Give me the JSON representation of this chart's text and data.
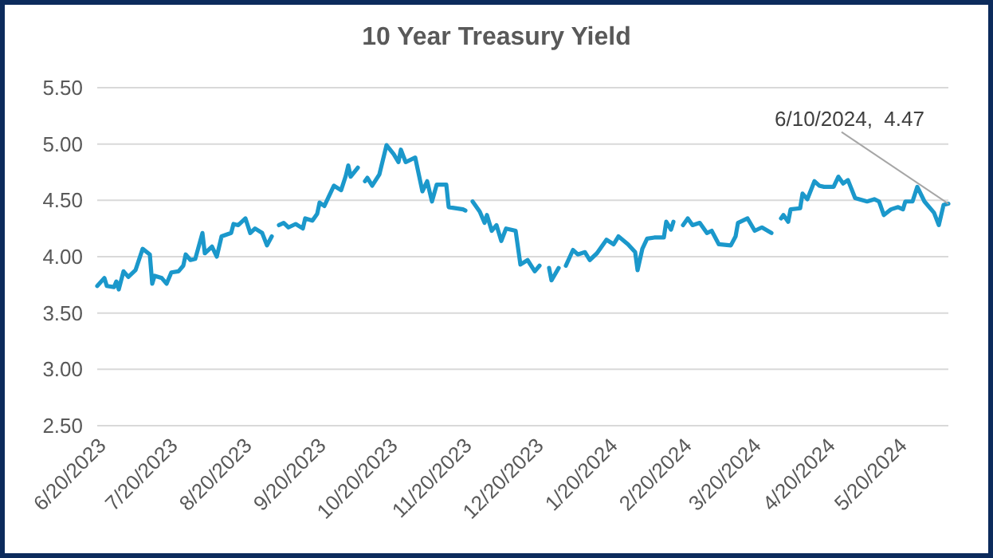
{
  "chart_data": {
    "type": "line",
    "title": "10 Year Treasury Yield",
    "xlim": [
      "2023-06-20",
      "2024-06-10"
    ],
    "xticks": [
      {
        "value": "2023-06-20",
        "label": "6/20/2023"
      },
      {
        "value": "2023-07-20",
        "label": "7/20/2023"
      },
      {
        "value": "2023-08-20",
        "label": "8/20/2023"
      },
      {
        "value": "2023-09-20",
        "label": "9/20/2023"
      },
      {
        "value": "2023-10-20",
        "label": "10/20/2023"
      },
      {
        "value": "2023-11-20",
        "label": "11/20/2023"
      },
      {
        "value": "2023-12-20",
        "label": "12/20/2023"
      },
      {
        "value": "2024-01-20",
        "label": "1/20/2024"
      },
      {
        "value": "2024-02-20",
        "label": "2/20/2024"
      },
      {
        "value": "2024-03-20",
        "label": "3/20/2024"
      },
      {
        "value": "2024-04-20",
        "label": "4/20/2024"
      },
      {
        "value": "2024-05-20",
        "label": "5/20/2024"
      }
    ],
    "ylim": [
      2.5,
      5.5
    ],
    "yticks": [
      {
        "value": 2.5,
        "label": "2.50"
      },
      {
        "value": 3,
        "label": "3.00"
      },
      {
        "value": 3.5,
        "label": "3.50"
      },
      {
        "value": 4,
        "label": "4.00"
      },
      {
        "value": 4.5,
        "label": "4.50"
      },
      {
        "value": 5,
        "label": "5.00"
      },
      {
        "value": 5.5,
        "label": "5.50"
      }
    ],
    "grid": "y",
    "marker": "none",
    "line_style": "solid",
    "annotations": [
      {
        "text": "6/10/2024,  4.47",
        "x": "2024-06-10",
        "y": 4.47
      }
    ],
    "series": [
      {
        "color": "#1b98cb",
        "x": [
          "2023-06-20",
          "2023-06-23",
          "2023-06-24",
          "2023-06-27",
          "2023-06-28",
          "2023-06-29",
          "2023-07-01",
          "2023-07-03",
          "2023-07-06",
          "2023-07-09",
          "2023-07-12",
          "2023-07-13",
          "2023-07-14",
          "2023-07-17",
          "2023-07-19",
          "2023-07-21",
          "2023-07-24",
          "2023-07-26",
          "2023-07-27",
          "2023-07-29",
          "2023-07-31",
          "2023-08-03",
          "2023-08-04",
          "2023-08-07",
          "2023-08-09",
          "2023-08-11",
          "2023-08-15",
          "2023-08-16",
          "2023-08-18",
          "2023-08-21",
          "2023-08-23",
          "2023-08-25",
          "2023-08-28",
          "2023-08-30",
          "2023-09-01",
          "2023-09-02",
          "2023-09-04",
          "2023-09-06",
          "2023-09-08",
          "2023-09-11",
          "2023-09-14",
          "2023-09-15",
          "2023-09-18",
          "2023-09-20",
          "2023-09-21",
          "2023-09-23",
          "2023-09-27",
          "2023-09-30",
          "2023-10-02",
          "2023-10-03",
          "2023-10-04",
          "2023-10-07",
          "2023-10-08",
          "2023-10-10",
          "2023-10-11",
          "2023-10-13",
          "2023-10-16",
          "2023-10-19",
          "2023-10-22",
          "2023-10-24",
          "2023-10-25",
          "2023-10-27",
          "2023-10-31",
          "2023-11-03",
          "2023-11-05",
          "2023-11-07",
          "2023-11-09",
          "2023-11-13",
          "2023-11-14",
          "2023-11-20",
          "2023-11-21",
          "2023-11-22",
          "2023-11-24",
          "2023-11-27",
          "2023-11-29",
          "2023-11-30",
          "2023-12-02",
          "2023-12-04",
          "2023-12-06",
          "2023-12-08",
          "2023-12-12",
          "2023-12-14",
          "2023-12-17",
          "2023-12-20",
          "2023-12-22",
          "2023-12-24",
          "2023-12-26",
          "2023-12-27",
          "2023-12-30",
          "2023-12-31",
          "2024-01-02",
          "2024-01-05",
          "2024-01-07",
          "2024-01-10",
          "2024-01-12",
          "2024-01-15",
          "2024-01-19",
          "2024-01-22",
          "2024-01-24",
          "2024-01-28",
          "2024-01-31",
          "2024-02-01",
          "2024-02-03",
          "2024-02-05",
          "2024-02-08",
          "2024-02-12",
          "2024-02-13",
          "2024-02-15",
          "2024-02-16",
          "2024-02-18",
          "2024-02-20",
          "2024-02-22",
          "2024-02-24",
          "2024-02-27",
          "2024-03-01",
          "2024-03-03",
          "2024-03-06",
          "2024-03-11",
          "2024-03-13",
          "2024-03-14",
          "2024-03-18",
          "2024-03-21",
          "2024-03-24",
          "2024-03-28",
          "2024-03-30",
          "2024-04-01",
          "2024-04-02",
          "2024-04-04",
          "2024-04-05",
          "2024-04-09",
          "2024-04-10",
          "2024-04-12",
          "2024-04-15",
          "2024-04-17",
          "2024-04-19",
          "2024-04-23",
          "2024-04-25",
          "2024-04-27",
          "2024-04-29",
          "2024-05-02",
          "2024-05-07",
          "2024-05-10",
          "2024-05-12",
          "2024-05-14",
          "2024-05-17",
          "2024-05-20",
          "2024-05-22",
          "2024-05-23",
          "2024-05-26",
          "2024-05-28",
          "2024-05-31",
          "2024-06-04",
          "2024-06-06",
          "2024-06-08",
          "2024-06-10"
        ],
        "values": [
          3.74,
          3.81,
          3.74,
          3.73,
          3.78,
          3.71,
          3.87,
          3.82,
          3.88,
          4.07,
          4.02,
          3.76,
          3.83,
          3.81,
          3.76,
          3.86,
          3.87,
          3.92,
          4.02,
          3.97,
          3.98,
          4.21,
          4.03,
          4.09,
          4.0,
          4.18,
          4.21,
          4.29,
          4.28,
          4.34,
          4.21,
          4.25,
          4.21,
          4.1,
          4.18,
          null,
          4.28,
          4.3,
          4.26,
          4.29,
          4.25,
          4.34,
          4.32,
          4.38,
          4.48,
          4.45,
          4.63,
          4.59,
          4.72,
          4.81,
          4.71,
          4.79,
          null,
          4.67,
          4.7,
          4.63,
          4.73,
          4.99,
          4.91,
          4.84,
          4.95,
          4.84,
          4.88,
          4.58,
          4.67,
          4.49,
          4.64,
          4.64,
          4.44,
          4.42,
          4.41,
          null,
          4.49,
          4.4,
          4.3,
          4.37,
          4.23,
          4.28,
          4.14,
          4.25,
          4.23,
          3.93,
          3.97,
          3.87,
          3.92,
          null,
          3.9,
          3.79,
          3.9,
          null,
          3.92,
          4.06,
          4.02,
          4.04,
          3.97,
          4.03,
          4.15,
          4.11,
          4.18,
          4.11,
          4.04,
          3.88,
          4.07,
          4.16,
          4.17,
          4.17,
          4.31,
          4.24,
          4.31,
          null,
          4.28,
          4.34,
          4.28,
          4.3,
          4.21,
          4.23,
          4.11,
          4.1,
          4.18,
          4.3,
          4.34,
          4.23,
          4.26,
          4.21,
          null,
          4.34,
          4.37,
          4.31,
          4.42,
          4.43,
          4.56,
          4.51,
          4.67,
          4.63,
          4.62,
          4.62,
          4.71,
          4.65,
          4.68,
          4.52,
          4.49,
          4.51,
          4.49,
          4.37,
          4.42,
          4.44,
          4.42,
          4.49,
          4.49,
          4.62,
          4.49,
          4.39,
          4.28,
          4.46,
          4.47
        ]
      }
    ]
  }
}
